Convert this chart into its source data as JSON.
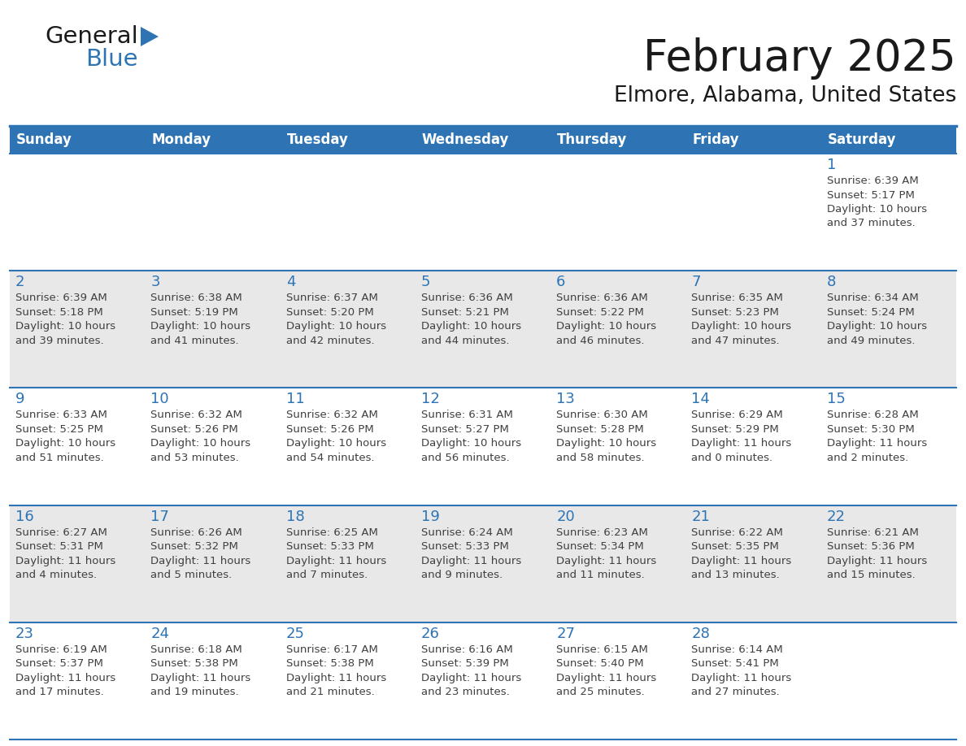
{
  "title": "February 2025",
  "subtitle": "Elmore, Alabama, United States",
  "header_bg": "#2E74B5",
  "header_text_color": "#FFFFFF",
  "row_bg_light": "#FFFFFF",
  "row_bg_dark": "#E8E8E8",
  "day_number_color": "#2E74B5",
  "info_text_color": "#404040",
  "separator_color": "#2E74B5",
  "weekdays": [
    "Sunday",
    "Monday",
    "Tuesday",
    "Wednesday",
    "Thursday",
    "Friday",
    "Saturday"
  ],
  "days": [
    {
      "day": 1,
      "col": 6,
      "row": 0,
      "sunrise": "6:39 AM",
      "sunset": "5:17 PM",
      "daylight_h": "10 hours",
      "daylight_m": "and 37 minutes."
    },
    {
      "day": 2,
      "col": 0,
      "row": 1,
      "sunrise": "6:39 AM",
      "sunset": "5:18 PM",
      "daylight_h": "10 hours",
      "daylight_m": "and 39 minutes."
    },
    {
      "day": 3,
      "col": 1,
      "row": 1,
      "sunrise": "6:38 AM",
      "sunset": "5:19 PM",
      "daylight_h": "10 hours",
      "daylight_m": "and 41 minutes."
    },
    {
      "day": 4,
      "col": 2,
      "row": 1,
      "sunrise": "6:37 AM",
      "sunset": "5:20 PM",
      "daylight_h": "10 hours",
      "daylight_m": "and 42 minutes."
    },
    {
      "day": 5,
      "col": 3,
      "row": 1,
      "sunrise": "6:36 AM",
      "sunset": "5:21 PM",
      "daylight_h": "10 hours",
      "daylight_m": "and 44 minutes."
    },
    {
      "day": 6,
      "col": 4,
      "row": 1,
      "sunrise": "6:36 AM",
      "sunset": "5:22 PM",
      "daylight_h": "10 hours",
      "daylight_m": "and 46 minutes."
    },
    {
      "day": 7,
      "col": 5,
      "row": 1,
      "sunrise": "6:35 AM",
      "sunset": "5:23 PM",
      "daylight_h": "10 hours",
      "daylight_m": "and 47 minutes."
    },
    {
      "day": 8,
      "col": 6,
      "row": 1,
      "sunrise": "6:34 AM",
      "sunset": "5:24 PM",
      "daylight_h": "10 hours",
      "daylight_m": "and 49 minutes."
    },
    {
      "day": 9,
      "col": 0,
      "row": 2,
      "sunrise": "6:33 AM",
      "sunset": "5:25 PM",
      "daylight_h": "10 hours",
      "daylight_m": "and 51 minutes."
    },
    {
      "day": 10,
      "col": 1,
      "row": 2,
      "sunrise": "6:32 AM",
      "sunset": "5:26 PM",
      "daylight_h": "10 hours",
      "daylight_m": "and 53 minutes."
    },
    {
      "day": 11,
      "col": 2,
      "row": 2,
      "sunrise": "6:32 AM",
      "sunset": "5:26 PM",
      "daylight_h": "10 hours",
      "daylight_m": "and 54 minutes."
    },
    {
      "day": 12,
      "col": 3,
      "row": 2,
      "sunrise": "6:31 AM",
      "sunset": "5:27 PM",
      "daylight_h": "10 hours",
      "daylight_m": "and 56 minutes."
    },
    {
      "day": 13,
      "col": 4,
      "row": 2,
      "sunrise": "6:30 AM",
      "sunset": "5:28 PM",
      "daylight_h": "10 hours",
      "daylight_m": "and 58 minutes."
    },
    {
      "day": 14,
      "col": 5,
      "row": 2,
      "sunrise": "6:29 AM",
      "sunset": "5:29 PM",
      "daylight_h": "11 hours",
      "daylight_m": "and 0 minutes."
    },
    {
      "day": 15,
      "col": 6,
      "row": 2,
      "sunrise": "6:28 AM",
      "sunset": "5:30 PM",
      "daylight_h": "11 hours",
      "daylight_m": "and 2 minutes."
    },
    {
      "day": 16,
      "col": 0,
      "row": 3,
      "sunrise": "6:27 AM",
      "sunset": "5:31 PM",
      "daylight_h": "11 hours",
      "daylight_m": "and 4 minutes."
    },
    {
      "day": 17,
      "col": 1,
      "row": 3,
      "sunrise": "6:26 AM",
      "sunset": "5:32 PM",
      "daylight_h": "11 hours",
      "daylight_m": "and 5 minutes."
    },
    {
      "day": 18,
      "col": 2,
      "row": 3,
      "sunrise": "6:25 AM",
      "sunset": "5:33 PM",
      "daylight_h": "11 hours",
      "daylight_m": "and 7 minutes."
    },
    {
      "day": 19,
      "col": 3,
      "row": 3,
      "sunrise": "6:24 AM",
      "sunset": "5:33 PM",
      "daylight_h": "11 hours",
      "daylight_m": "and 9 minutes."
    },
    {
      "day": 20,
      "col": 4,
      "row": 3,
      "sunrise": "6:23 AM",
      "sunset": "5:34 PM",
      "daylight_h": "11 hours",
      "daylight_m": "and 11 minutes."
    },
    {
      "day": 21,
      "col": 5,
      "row": 3,
      "sunrise": "6:22 AM",
      "sunset": "5:35 PM",
      "daylight_h": "11 hours",
      "daylight_m": "and 13 minutes."
    },
    {
      "day": 22,
      "col": 6,
      "row": 3,
      "sunrise": "6:21 AM",
      "sunset": "5:36 PM",
      "daylight_h": "11 hours",
      "daylight_m": "and 15 minutes."
    },
    {
      "day": 23,
      "col": 0,
      "row": 4,
      "sunrise": "6:19 AM",
      "sunset": "5:37 PM",
      "daylight_h": "11 hours",
      "daylight_m": "and 17 minutes."
    },
    {
      "day": 24,
      "col": 1,
      "row": 4,
      "sunrise": "6:18 AM",
      "sunset": "5:38 PM",
      "daylight_h": "11 hours",
      "daylight_m": "and 19 minutes."
    },
    {
      "day": 25,
      "col": 2,
      "row": 4,
      "sunrise": "6:17 AM",
      "sunset": "5:38 PM",
      "daylight_h": "11 hours",
      "daylight_m": "and 21 minutes."
    },
    {
      "day": 26,
      "col": 3,
      "row": 4,
      "sunrise": "6:16 AM",
      "sunset": "5:39 PM",
      "daylight_h": "11 hours",
      "daylight_m": "and 23 minutes."
    },
    {
      "day": 27,
      "col": 4,
      "row": 4,
      "sunrise": "6:15 AM",
      "sunset": "5:40 PM",
      "daylight_h": "11 hours",
      "daylight_m": "and 25 minutes."
    },
    {
      "day": 28,
      "col": 5,
      "row": 4,
      "sunrise": "6:14 AM",
      "sunset": "5:41 PM",
      "daylight_h": "11 hours",
      "daylight_m": "and 27 minutes."
    }
  ],
  "num_rows": 5,
  "num_cols": 7
}
